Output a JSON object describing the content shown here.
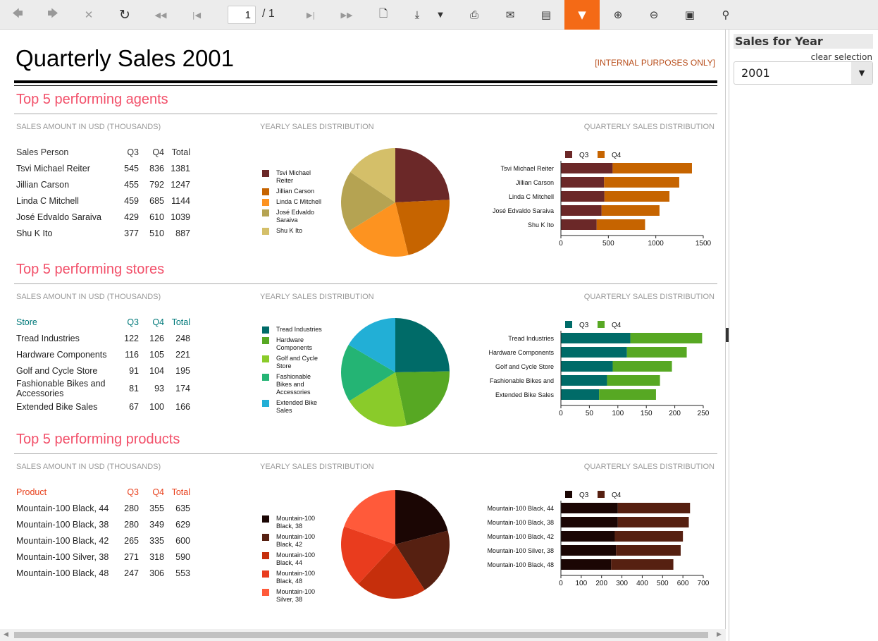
{
  "toolbar": {
    "page_current": "1",
    "page_total": "/ 1",
    "icons": [
      "back",
      "forward",
      "stop",
      "refresh",
      "first-page",
      "previous-page",
      "next-page",
      "last-page",
      "page-setup",
      "export",
      "print",
      "email",
      "document-map",
      "parameters",
      "zoom-in",
      "zoom-out",
      "fit-page",
      "search"
    ]
  },
  "report": {
    "title": "Quarterly Sales 2001",
    "internal": "[INTERNAL PURPOSES ONLY]",
    "sections": [
      {
        "title": "Top 5 performing agents",
        "sub_table": "SALES AMOUNT IN USD (THOUSANDS)",
        "sub_pie": "YEARLY SALES DISTRIBUTION",
        "sub_bar": "QUARTERLY SALES DISTRIBUTION",
        "header_color": "#333333",
        "columns": [
          "Sales Person",
          "Q3",
          "Q4",
          "Total"
        ],
        "rows": [
          [
            "Tsvi Michael Reiter",
            "545",
            "836",
            "1381"
          ],
          [
            "Jillian  Carson",
            "455",
            "792",
            "1247"
          ],
          [
            "Linda C Mitchell",
            "459",
            "685",
            "1144"
          ],
          [
            "José Edvaldo Saraiva",
            "429",
            "610",
            "1039"
          ],
          [
            "Shu K Ito",
            "377",
            "510",
            "887"
          ]
        ],
        "pie_labels": [
          "Tsvi Michael Reiter",
          "Jillian  Carson",
          "Linda C Mitchell",
          "José Edvaldo Saraiva",
          "Shu K Ito"
        ],
        "pie_colors": [
          "#6b2828",
          "#c66400",
          "#fd9320",
          "#b5a352",
          "#d4bf69"
        ],
        "bar_labels": [
          "Tsvi Michael Reiter",
          "Jillian  Carson",
          "Linda C Mitchell",
          "José Edvaldo Saraiva",
          "Shu K Ito"
        ],
        "bar_colors": [
          "#6b2828",
          "#c66400"
        ],
        "axis_max": 1500,
        "ticks": [
          0,
          500,
          1000,
          1500
        ]
      },
      {
        "title": "Top 5 performing stores",
        "sub_table": "SALES AMOUNT IN USD (THOUSANDS)",
        "sub_pie": "YEARLY SALES DISTRIBUTION",
        "sub_bar": "QUARTERLY SALES DISTRIBUTION",
        "header_color": "#00797a",
        "columns": [
          "Store",
          "Q3",
          "Q4",
          "Total"
        ],
        "rows": [
          [
            "Tread Industries",
            "122",
            "126",
            "248"
          ],
          [
            "Hardware Components",
            "116",
            "105",
            "221"
          ],
          [
            "Golf and Cycle Store",
            "91",
            "104",
            "195"
          ],
          [
            "Fashionable Bikes and Accessories",
            "81",
            "93",
            "174"
          ],
          [
            "Extended Bike Sales",
            "67",
            "100",
            "166"
          ]
        ],
        "pie_labels": [
          "Tread Industries",
          "Hardware Components",
          "Golf and Cycle Store",
          "Fashionable Bikes and Accessories",
          "Extended Bike Sales"
        ],
        "pie_colors": [
          "#006b68",
          "#57a823",
          "#8acb2a",
          "#24b474",
          "#22afd6"
        ],
        "bar_labels": [
          "Tread Industries",
          "Hardware Components",
          "Golf and Cycle Store",
          "Fashionable Bikes and",
          "Extended Bike Sales"
        ],
        "bar_colors": [
          "#006b68",
          "#57a823"
        ],
        "axis_max": 250,
        "ticks": [
          0,
          50,
          100,
          150,
          200,
          250
        ]
      },
      {
        "title": "Top 5 performing products",
        "sub_table": "SALES AMOUNT IN USD (THOUSANDS)",
        "sub_pie": "YEARLY SALES DISTRIBUTION",
        "sub_bar": "QUARTERLY SALES DISTRIBUTION",
        "header_color": "#e8401c",
        "columns": [
          "Product",
          "Q3",
          "Q4",
          "Total"
        ],
        "rows": [
          [
            "Mountain-100 Black, 44",
            "280",
            "355",
            "635"
          ],
          [
            "Mountain-100 Black, 38",
            "280",
            "349",
            "629"
          ],
          [
            "Mountain-100 Black, 42",
            "265",
            "335",
            "600"
          ],
          [
            "Mountain-100 Silver, 38",
            "271",
            "318",
            "590"
          ],
          [
            "Mountain-100 Black, 48",
            "247",
            "306",
            "553"
          ]
        ],
        "pie_labels": [
          "Mountain-100 Black, 38",
          "Mountain-100 Black, 42",
          "Mountain-100 Black, 44",
          "Mountain-100 Black, 48",
          "Mountain-100 Silver, 38"
        ],
        "pie_values": [
          629,
          600,
          635,
          553,
          590
        ],
        "pie_colors": [
          "#1b0604",
          "#562011",
          "#c62f0c",
          "#e93c1e",
          "#ff5a3a"
        ],
        "bar_labels": [
          "Mountain-100 Black, 44",
          "Mountain-100 Black, 38",
          "Mountain-100 Black, 42",
          "Mountain-100 Silver, 38",
          "Mountain-100 Black, 48"
        ],
        "bar_colors": [
          "#1b0604",
          "#562011"
        ],
        "axis_max": 700,
        "ticks": [
          0,
          100,
          200,
          300,
          400,
          500,
          600,
          700
        ]
      }
    ],
    "legend_q3": "Q3",
    "legend_q4": "Q4"
  },
  "sidebar": {
    "title": "Sales for Year",
    "clear": "clear selection",
    "selected": "2001"
  }
}
